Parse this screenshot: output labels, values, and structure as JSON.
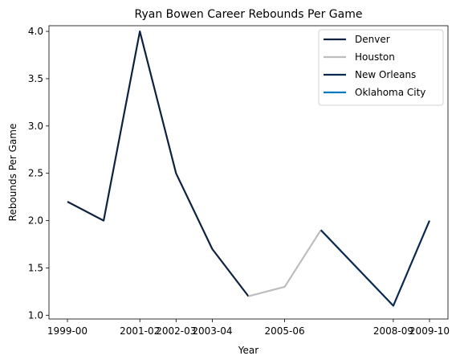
{
  "chart_data": {
    "type": "line",
    "title": "Ryan Bowen Career Rebounds Per Game",
    "xlabel": "Year",
    "ylabel": "Rebounds Per Game",
    "x_tick_labels": [
      "1999-00",
      "2001-02",
      "2002-03",
      "2003-04",
      "2005-06",
      "2008-09",
      "2009-10"
    ],
    "ylim": [
      0.96,
      4.06
    ],
    "yticks": [
      "1.0",
      "1.5",
      "2.0",
      "2.5",
      "3.0",
      "3.5",
      "4.0"
    ],
    "grid": false,
    "legend_placement": "top-right",
    "series": [
      {
        "name": "Denver",
        "color": "#0e2240",
        "points": [
          {
            "x": "1999-00",
            "y": 2.2
          },
          {
            "x": "2000-01",
            "y": 2.0
          },
          {
            "x": "2001-02",
            "y": 4.0
          },
          {
            "x": "2002-03",
            "y": 2.5
          },
          {
            "x": "2003-04",
            "y": 1.7
          },
          {
            "x": "2004-05",
            "y": 1.2
          }
        ]
      },
      {
        "name": "Houston",
        "color": "#bdbdbd",
        "points": [
          {
            "x": "2004-05",
            "y": 1.2
          },
          {
            "x": "2005-06",
            "y": 1.3
          },
          {
            "x": "2006-07",
            "y": 1.9
          }
        ]
      },
      {
        "name": "New Orleans",
        "color": "#0b2a52",
        "points": [
          {
            "x": "2006-07",
            "y": 1.9
          },
          {
            "x": "2008-09",
            "y": 1.1
          },
          {
            "x": "2009-10",
            "y": 2.0
          }
        ]
      },
      {
        "name": "Oklahoma City",
        "color": "#007ac1",
        "points": []
      }
    ]
  }
}
